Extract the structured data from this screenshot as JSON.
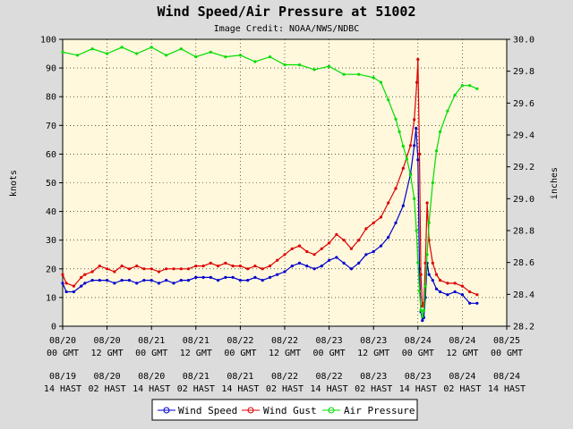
{
  "chart_data": {
    "type": "line",
    "title": "Wind Speed/Air Pressure at 51002",
    "subtitle": "Image Credit: NOAA/NWS/NDBC",
    "ylabel_left": "knots",
    "ylabel_right": "inches",
    "ylim_left": [
      0,
      100
    ],
    "ylim_right": [
      28.2,
      30.0
    ],
    "yticks_left": [
      "0",
      "10",
      "20",
      "30",
      "40",
      "50",
      "60",
      "70",
      "80",
      "90",
      "100"
    ],
    "yticks_right": [
      "28.2",
      "28.4",
      "28.6",
      "28.8",
      "29.0",
      "29.2",
      "29.4",
      "29.6",
      "29.8",
      "30.0"
    ],
    "xlim": [
      0,
      120
    ],
    "x_unit": "hours after 08/20 00 GMT",
    "xticks": [
      {
        "x": 0,
        "gmt": [
          "08/20",
          "00 GMT"
        ],
        "local": [
          "08/19",
          "14 HAST"
        ]
      },
      {
        "x": 12,
        "gmt": [
          "08/20",
          "12 GMT"
        ],
        "local": [
          "08/20",
          "02 HAST"
        ]
      },
      {
        "x": 24,
        "gmt": [
          "08/21",
          "00 GMT"
        ],
        "local": [
          "08/20",
          "14 HAST"
        ]
      },
      {
        "x": 36,
        "gmt": [
          "08/21",
          "12 GMT"
        ],
        "local": [
          "08/21",
          "02 HAST"
        ]
      },
      {
        "x": 48,
        "gmt": [
          "08/22",
          "00 GMT"
        ],
        "local": [
          "08/21",
          "14 HAST"
        ]
      },
      {
        "x": 60,
        "gmt": [
          "08/22",
          "12 GMT"
        ],
        "local": [
          "08/22",
          "02 HAST"
        ]
      },
      {
        "x": 72,
        "gmt": [
          "08/23",
          "00 GMT"
        ],
        "local": [
          "08/22",
          "14 HAST"
        ]
      },
      {
        "x": 84,
        "gmt": [
          "08/23",
          "12 GMT"
        ],
        "local": [
          "08/23",
          "02 HAST"
        ]
      },
      {
        "x": 96,
        "gmt": [
          "08/24",
          "00 GMT"
        ],
        "local": [
          "08/23",
          "14 HAST"
        ]
      },
      {
        "x": 108,
        "gmt": [
          "08/24",
          "12 GMT"
        ],
        "local": [
          "08/24",
          "02 HAST"
        ]
      },
      {
        "x": 120,
        "gmt": [
          "08/25",
          "00 GMT"
        ],
        "local": [
          "08/24",
          "14 HAST"
        ]
      }
    ],
    "grid": true,
    "legend_position": "bottom-center",
    "series": [
      {
        "name": "Wind Speed",
        "color": "#0000cc",
        "axis": "left",
        "points": [
          [
            0,
            15
          ],
          [
            1,
            12
          ],
          [
            3,
            12
          ],
          [
            5,
            14
          ],
          [
            6,
            15
          ],
          [
            8,
            16
          ],
          [
            10,
            16
          ],
          [
            12,
            16
          ],
          [
            14,
            15
          ],
          [
            16,
            16
          ],
          [
            18,
            16
          ],
          [
            20,
            15
          ],
          [
            22,
            16
          ],
          [
            24,
            16
          ],
          [
            26,
            15
          ],
          [
            28,
            16
          ],
          [
            30,
            15
          ],
          [
            32,
            16
          ],
          [
            34,
            16
          ],
          [
            36,
            17
          ],
          [
            38,
            17
          ],
          [
            40,
            17
          ],
          [
            42,
            16
          ],
          [
            44,
            17
          ],
          [
            46,
            17
          ],
          [
            48,
            16
          ],
          [
            50,
            16
          ],
          [
            52,
            17
          ],
          [
            54,
            16
          ],
          [
            56,
            17
          ],
          [
            58,
            18
          ],
          [
            60,
            19
          ],
          [
            62,
            21
          ],
          [
            64,
            22
          ],
          [
            66,
            21
          ],
          [
            68,
            20
          ],
          [
            70,
            21
          ],
          [
            72,
            23
          ],
          [
            74,
            24
          ],
          [
            76,
            22
          ],
          [
            78,
            20
          ],
          [
            80,
            22
          ],
          [
            82,
            25
          ],
          [
            84,
            26
          ],
          [
            86,
            28
          ],
          [
            88,
            31
          ],
          [
            90,
            36
          ],
          [
            92,
            42
          ],
          [
            94,
            53
          ],
          [
            95,
            63
          ],
          [
            95.5,
            69
          ],
          [
            96,
            58
          ],
          [
            96.4,
            20
          ],
          [
            96.8,
            5
          ],
          [
            97.2,
            2
          ],
          [
            97.6,
            3
          ],
          [
            98,
            10
          ],
          [
            98.5,
            22
          ],
          [
            99,
            18
          ],
          [
            100,
            16
          ],
          [
            101,
            13
          ],
          [
            102,
            12
          ],
          [
            104,
            11
          ],
          [
            106,
            12
          ],
          [
            108,
            11
          ],
          [
            110,
            8
          ],
          [
            112,
            8
          ]
        ]
      },
      {
        "name": "Wind Gust",
        "color": "#dd0000",
        "axis": "left",
        "points": [
          [
            0,
            18
          ],
          [
            1,
            15
          ],
          [
            3,
            14
          ],
          [
            5,
            17
          ],
          [
            6,
            18
          ],
          [
            8,
            19
          ],
          [
            10,
            21
          ],
          [
            12,
            20
          ],
          [
            14,
            19
          ],
          [
            16,
            21
          ],
          [
            18,
            20
          ],
          [
            20,
            21
          ],
          [
            22,
            20
          ],
          [
            24,
            20
          ],
          [
            26,
            19
          ],
          [
            28,
            20
          ],
          [
            30,
            20
          ],
          [
            32,
            20
          ],
          [
            34,
            20
          ],
          [
            36,
            21
          ],
          [
            38,
            21
          ],
          [
            40,
            22
          ],
          [
            42,
            21
          ],
          [
            44,
            22
          ],
          [
            46,
            21
          ],
          [
            48,
            21
          ],
          [
            50,
            20
          ],
          [
            52,
            21
          ],
          [
            54,
            20
          ],
          [
            56,
            21
          ],
          [
            58,
            23
          ],
          [
            60,
            25
          ],
          [
            62,
            27
          ],
          [
            64,
            28
          ],
          [
            66,
            26
          ],
          [
            68,
            25
          ],
          [
            70,
            27
          ],
          [
            72,
            29
          ],
          [
            74,
            32
          ],
          [
            76,
            30
          ],
          [
            78,
            27
          ],
          [
            80,
            30
          ],
          [
            82,
            34
          ],
          [
            84,
            36
          ],
          [
            86,
            38
          ],
          [
            88,
            43
          ],
          [
            90,
            48
          ],
          [
            92,
            55
          ],
          [
            94,
            63
          ],
          [
            95,
            72
          ],
          [
            95.7,
            85
          ],
          [
            96,
            93
          ],
          [
            96.4,
            60
          ],
          [
            96.8,
            18
          ],
          [
            97.2,
            7
          ],
          [
            97.6,
            8
          ],
          [
            98,
            22
          ],
          [
            98.5,
            43
          ],
          [
            99,
            30
          ],
          [
            100,
            22
          ],
          [
            101,
            18
          ],
          [
            102,
            16
          ],
          [
            104,
            15
          ],
          [
            106,
            15
          ],
          [
            108,
            14
          ],
          [
            110,
            12
          ],
          [
            112,
            11
          ]
        ]
      },
      {
        "name": "Air Pressure",
        "color": "#00dd00",
        "axis": "right",
        "points": [
          [
            0,
            29.92
          ],
          [
            4,
            29.9
          ],
          [
            8,
            29.94
          ],
          [
            12,
            29.91
          ],
          [
            16,
            29.95
          ],
          [
            20,
            29.91
          ],
          [
            24,
            29.95
          ],
          [
            28,
            29.9
          ],
          [
            32,
            29.94
          ],
          [
            36,
            29.89
          ],
          [
            40,
            29.92
          ],
          [
            44,
            29.89
          ],
          [
            48,
            29.9
          ],
          [
            52,
            29.86
          ],
          [
            56,
            29.89
          ],
          [
            60,
            29.84
          ],
          [
            64,
            29.84
          ],
          [
            68,
            29.81
          ],
          [
            72,
            29.83
          ],
          [
            76,
            29.78
          ],
          [
            80,
            29.78
          ],
          [
            84,
            29.76
          ],
          [
            86,
            29.73
          ],
          [
            88,
            29.62
          ],
          [
            90,
            29.5
          ],
          [
            91,
            29.42
          ],
          [
            92,
            29.33
          ],
          [
            93,
            29.25
          ],
          [
            94,
            29.15
          ],
          [
            95,
            29.0
          ],
          [
            95.6,
            28.8
          ],
          [
            96,
            28.6
          ],
          [
            96.4,
            28.42
          ],
          [
            96.8,
            28.3
          ],
          [
            97.2,
            28.26
          ],
          [
            97.6,
            28.3
          ],
          [
            98,
            28.45
          ],
          [
            98.5,
            28.65
          ],
          [
            99,
            28.85
          ],
          [
            100,
            29.1
          ],
          [
            101,
            29.3
          ],
          [
            102,
            29.42
          ],
          [
            104,
            29.55
          ],
          [
            106,
            29.65
          ],
          [
            108,
            29.71
          ],
          [
            110,
            29.71
          ],
          [
            112,
            29.69
          ]
        ]
      }
    ]
  }
}
